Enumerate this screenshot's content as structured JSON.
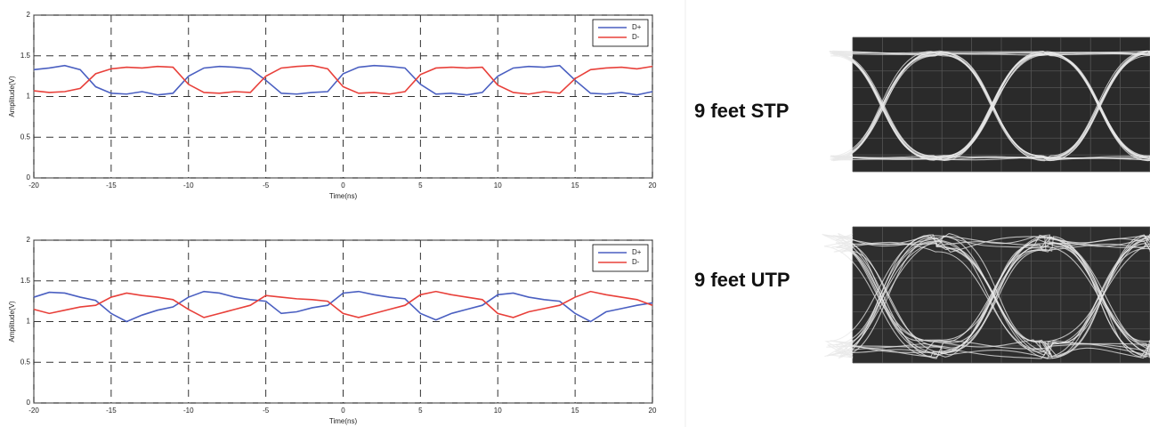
{
  "chart_data": [
    {
      "type": "line",
      "xlabel": "Time(ns)",
      "ylabel": "Amplitude(V)",
      "xlim": [
        -20,
        20
      ],
      "xticks": [
        -20,
        -15,
        -10,
        -5,
        0,
        5,
        10,
        15,
        20
      ],
      "ylim": [
        0,
        2
      ],
      "yticks": [
        0,
        0.5,
        1,
        1.5,
        2
      ],
      "grid": true,
      "legend": "upper right",
      "x": [
        -20,
        -19,
        -18,
        -17,
        -16,
        -15,
        -14,
        -13,
        -12,
        -11,
        -10,
        -9,
        -8,
        -7,
        -6,
        -5,
        -4,
        -3,
        -2,
        -1,
        0,
        1,
        2,
        3,
        4,
        5,
        6,
        7,
        8,
        9,
        10,
        11,
        12,
        13,
        14,
        15,
        16,
        17,
        18,
        19,
        20
      ],
      "series": [
        {
          "name": "D+",
          "color": "#4a5fc1",
          "values": [
            1.33,
            1.35,
            1.38,
            1.33,
            1.12,
            1.04,
            1.03,
            1.06,
            1.02,
            1.04,
            1.25,
            1.35,
            1.37,
            1.36,
            1.34,
            1.2,
            1.04,
            1.03,
            1.05,
            1.06,
            1.28,
            1.36,
            1.38,
            1.37,
            1.35,
            1.15,
            1.03,
            1.04,
            1.02,
            1.05,
            1.25,
            1.35,
            1.37,
            1.36,
            1.38,
            1.2,
            1.04,
            1.03,
            1.05,
            1.02,
            1.06
          ]
        },
        {
          "name": "D-",
          "color": "#e8403a",
          "values": [
            1.07,
            1.05,
            1.06,
            1.1,
            1.28,
            1.34,
            1.36,
            1.35,
            1.37,
            1.36,
            1.15,
            1.05,
            1.04,
            1.06,
            1.05,
            1.25,
            1.35,
            1.37,
            1.38,
            1.34,
            1.12,
            1.04,
            1.05,
            1.03,
            1.06,
            1.27,
            1.35,
            1.36,
            1.35,
            1.36,
            1.14,
            1.05,
            1.03,
            1.06,
            1.04,
            1.22,
            1.33,
            1.35,
            1.36,
            1.34,
            1.37
          ]
        }
      ]
    },
    {
      "type": "line",
      "xlabel": "Time(ns)",
      "ylabel": "Amplitude(V)",
      "xlim": [
        -20,
        20
      ],
      "xticks": [
        -20,
        -15,
        -10,
        -5,
        0,
        5,
        10,
        15,
        20
      ],
      "ylim": [
        0,
        2
      ],
      "yticks": [
        0,
        0.5,
        1,
        1.5,
        2
      ],
      "grid": true,
      "legend": "upper right",
      "x": [
        -20,
        -19,
        -18,
        -17,
        -16,
        -15,
        -14,
        -13,
        -12,
        -11,
        -10,
        -9,
        -8,
        -7,
        -6,
        -5,
        -4,
        -3,
        -2,
        -1,
        0,
        1,
        2,
        3,
        4,
        5,
        6,
        7,
        8,
        9,
        10,
        11,
        12,
        13,
        14,
        15,
        16,
        17,
        18,
        19,
        20
      ],
      "series": [
        {
          "name": "D+",
          "color": "#4a5fc1",
          "values": [
            1.3,
            1.36,
            1.35,
            1.3,
            1.26,
            1.1,
            1.0,
            1.08,
            1.14,
            1.18,
            1.3,
            1.37,
            1.35,
            1.3,
            1.27,
            1.25,
            1.1,
            1.12,
            1.17,
            1.2,
            1.35,
            1.37,
            1.33,
            1.3,
            1.28,
            1.1,
            1.02,
            1.1,
            1.15,
            1.2,
            1.33,
            1.35,
            1.3,
            1.27,
            1.25,
            1.1,
            1.0,
            1.12,
            1.16,
            1.2,
            1.23
          ]
        },
        {
          "name": "D-",
          "color": "#e8403a",
          "values": [
            1.15,
            1.1,
            1.14,
            1.18,
            1.2,
            1.3,
            1.35,
            1.32,
            1.3,
            1.27,
            1.15,
            1.05,
            1.1,
            1.15,
            1.2,
            1.32,
            1.3,
            1.28,
            1.27,
            1.25,
            1.1,
            1.05,
            1.1,
            1.15,
            1.2,
            1.33,
            1.37,
            1.33,
            1.3,
            1.27,
            1.1,
            1.05,
            1.12,
            1.16,
            1.2,
            1.3,
            1.37,
            1.33,
            1.3,
            1.27,
            1.2
          ]
        }
      ]
    }
  ],
  "labels": [
    "9 feet STP",
    "9 feet UTP"
  ]
}
